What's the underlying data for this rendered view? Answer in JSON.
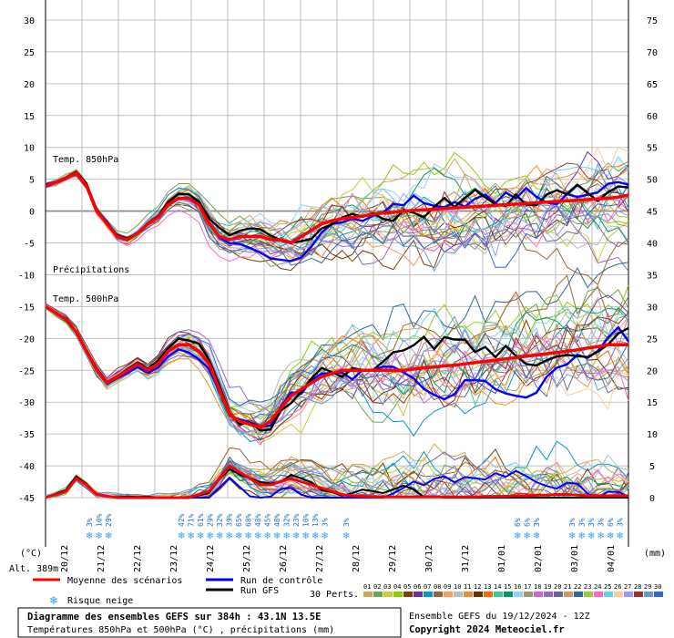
{
  "chart_data": {
    "type": "line",
    "left_axis": {
      "unit": "(°C)",
      "ticks": [
        30,
        25,
        20,
        15,
        10,
        5,
        0,
        -5,
        -10,
        -15,
        -20,
        -25,
        -30,
        -35,
        -40,
        -45
      ],
      "range": [
        -45,
        30
      ]
    },
    "right_axis": {
      "unit": "(mm)",
      "ticks": [
        75,
        70,
        65,
        60,
        55,
        50,
        45,
        40,
        35,
        30,
        25,
        20,
        15,
        10,
        5,
        0
      ],
      "range": [
        0,
        75
      ]
    },
    "x_labels": [
      "20/12",
      "21/12",
      "22/12",
      "23/12",
      "24/12",
      "25/12",
      "26/12",
      "27/12",
      "28/12",
      "29/12",
      "30/12",
      "31/12",
      "01/01",
      "02/01",
      "03/01",
      "04/01"
    ],
    "panel_labels": {
      "t850": "Temp. 850hPa",
      "precip": "Précipitations",
      "t500": "Temp. 500hPa"
    },
    "altitude": "Alt. 389m",
    "snow_risk": {
      "group1": [
        "3%",
        "10%",
        "29%"
      ],
      "group2": [
        "42%",
        "71%",
        "61%",
        "29%",
        "32%",
        "39%",
        "65%",
        "68%",
        "48%",
        "45%",
        "48%",
        "32%",
        "23%",
        "10%",
        "13%",
        "3%"
      ],
      "group3": [
        "3%"
      ],
      "group4": [
        "6%",
        "6%",
        "3%"
      ],
      "group5": [
        "3%",
        "3%",
        "3%",
        "3%",
        "6%",
        "3%"
      ]
    },
    "series": [
      {
        "name": "Moyenne des scénarios",
        "color": "#ff0000",
        "role": "mean"
      },
      {
        "name": "Run de contrôle",
        "color": "#0000ff",
        "role": "control"
      },
      {
        "name": "Run GFS",
        "color": "#000000",
        "role": "gfs"
      }
    ],
    "t850_mean": [
      4,
      4.5,
      5.2,
      6,
      4,
      0,
      -2,
      -4,
      -4.5,
      -3.5,
      -2,
      -1,
      1,
      2,
      2,
      1,
      -2,
      -4,
      -4.5,
      -4,
      -4,
      -4,
      -4.5,
      -4.5,
      -5,
      -4,
      -3,
      -2,
      -1.5,
      -1.2,
      -1,
      -0.8,
      -0.5,
      -0.3,
      -0.2,
      0,
      0.1,
      0.2,
      0.3,
      0.4,
      0.5,
      0.6,
      0.7,
      0.8,
      0.9,
      1,
      1.1,
      1.2,
      1.3,
      1.4,
      1.5,
      1.6,
      1.7,
      1.8,
      1.9,
      2,
      2.2,
      2.5
    ],
    "t500_mean": [
      -15,
      -16,
      -17,
      -19,
      -22,
      -25,
      -27,
      -26,
      -25,
      -24,
      -25,
      -24,
      -22,
      -21,
      -21,
      -22,
      -24,
      -28,
      -32,
      -33,
      -33.5,
      -34,
      -33,
      -31,
      -29,
      -28,
      -27,
      -26,
      -25.5,
      -25,
      -25,
      -25,
      -25,
      -25,
      -25,
      -25,
      -24.8,
      -24.6,
      -24.5,
      -24.3,
      -24.2,
      -24,
      -23.8,
      -23.6,
      -23.4,
      -23.2,
      -23,
      -22.8,
      -22.6,
      -22.4,
      -22.2,
      -22,
      -21.8,
      -21.5,
      -21.3,
      -21,
      -21,
      -21
    ],
    "precip_mean": [
      0,
      0.5,
      1,
      3,
      2,
      0.5,
      0.2,
      0,
      0,
      0,
      0,
      0,
      0,
      0,
      0,
      0.5,
      1,
      3,
      5,
      4,
      3,
      2,
      2,
      2.5,
      3,
      2.5,
      2,
      1.5,
      1,
      0.5,
      0.3,
      0.2,
      0.1,
      0.1,
      0.1,
      0.1,
      0.1,
      0.1,
      0.1,
      0.1,
      0.1,
      0.1,
      0.1,
      0.2,
      0.2,
      0.2,
      0.3,
      0.3,
      0.4,
      0.4,
      0.5,
      0.5,
      0.4,
      0.3,
      0.3,
      0.3,
      0.3,
      0.3
    ],
    "perturbations_label": "30 Perts.",
    "perturbation_ids": [
      "01",
      "02",
      "03",
      "04",
      "05",
      "06",
      "07",
      "08",
      "09",
      "10",
      "11",
      "12",
      "13",
      "14",
      "15",
      "16",
      "17",
      "18",
      "19",
      "20",
      "21",
      "22",
      "23",
      "24",
      "25",
      "26",
      "27",
      "28",
      "29",
      "30"
    ],
    "perturbation_colors": [
      "#d4a65a",
      "#6aa84f",
      "#cccc33",
      "#8fce00",
      "#7b3f00",
      "#6a329f",
      "#0099cc",
      "#996633",
      "#ff9966",
      "#bdbdbd",
      "#e69138",
      "#663300",
      "#ff6600",
      "#33cc99",
      "#009966",
      "#99ccff",
      "#999966",
      "#cc66cc",
      "#9966cc",
      "#666699",
      "#cc9966",
      "#336699",
      "#99cc33",
      "#ff66cc",
      "#66ccff",
      "#ffcc99",
      "#9999ff",
      "#993333",
      "#6699cc",
      "#3366cc"
    ]
  },
  "legend": {
    "mean_label": "Moyenne des scénarios",
    "control_label": "Run de contrôle",
    "gfs_label": "Run GFS",
    "snow_label": "Risque neige"
  },
  "footer": {
    "title": "Diagramme des ensembles GEFS sur 384h : 43.1N 13.5E",
    "subtitle": "Températures 850hPa et 500hPa (°C) , précipitations (mm)",
    "run": "Ensemble GEFS du 19/12/2024 - 12Z",
    "copyright": "Copyright 2024 Meteociel.fr"
  }
}
